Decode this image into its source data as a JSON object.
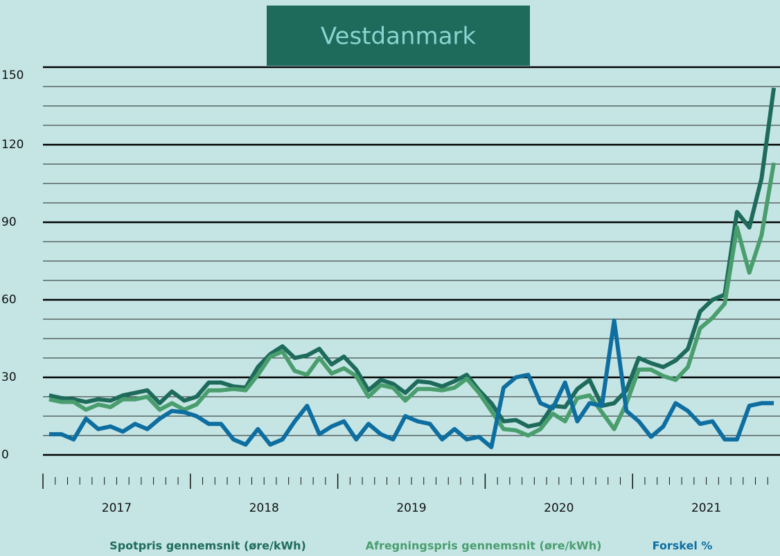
{
  "chart_data": {
    "type": "line",
    "title": "Vestdanmark",
    "years": [
      "2017",
      "2018",
      "2019",
      "2020",
      "2021"
    ],
    "ylim": [
      0,
      150
    ],
    "yticks": [
      0,
      30,
      60,
      90,
      120,
      150
    ],
    "minor_ygrid": [
      7.5,
      15,
      22.5,
      37.5,
      45,
      52.5,
      67.5,
      75,
      82.5,
      97.5,
      105,
      112.5,
      127.5,
      135,
      142.5
    ],
    "series": [
      {
        "name": "Spotpris gennemsnit (øre/kWh)",
        "color": "#1e6b5c",
        "values": [
          23,
          22,
          21.5,
          20.5,
          21.5,
          21,
          23,
          24,
          25,
          20,
          24.5,
          21,
          22.5,
          28,
          28,
          26.5,
          26,
          34,
          39,
          42,
          37.5,
          38.5,
          41,
          35,
          38,
          33,
          25,
          29,
          27.5,
          24,
          28.5,
          28,
          26.5,
          28.5,
          31,
          25,
          20,
          13,
          13.5,
          11,
          12,
          19,
          18.5,
          25.5,
          29,
          19,
          20,
          25,
          37.5,
          35.5,
          34,
          36.5,
          41,
          55.5,
          60,
          62,
          94,
          88,
          107,
          142
        ]
      },
      {
        "name": "Afregningspris gennemsnit (øre/kWh)",
        "color": "#4a9e6e",
        "values": [
          21.5,
          20.5,
          20.5,
          17.5,
          19.5,
          18.5,
          21.5,
          21.5,
          22.5,
          17.5,
          20,
          17.5,
          19.5,
          25,
          25,
          25.5,
          25,
          31,
          38,
          40,
          32.5,
          31,
          37.5,
          31.5,
          33.5,
          30.5,
          22.5,
          27,
          26,
          21,
          25.5,
          25.5,
          25,
          26,
          29.5,
          24,
          17,
          10,
          9.5,
          7.5,
          10,
          16,
          13,
          22,
          23,
          16.5,
          10,
          20,
          33,
          33,
          30.5,
          29,
          34,
          49,
          53,
          58.5,
          88,
          70.5,
          85,
          113
        ]
      },
      {
        "name": "Forskel %",
        "color": "#0e6ea0",
        "values": [
          8,
          8,
          6,
          14,
          10,
          11,
          9,
          12,
          10,
          14,
          17,
          16.5,
          15,
          12,
          12,
          6,
          4,
          10,
          4,
          6,
          13,
          19,
          8,
          11,
          13,
          6,
          12,
          8,
          6,
          15,
          13,
          12,
          6,
          10,
          6,
          7,
          3,
          26,
          30,
          31,
          20,
          18,
          28,
          13,
          20,
          19,
          52,
          17,
          13,
          7,
          11,
          20,
          17,
          12,
          13,
          6,
          6,
          19,
          20,
          20
        ]
      }
    ]
  }
}
